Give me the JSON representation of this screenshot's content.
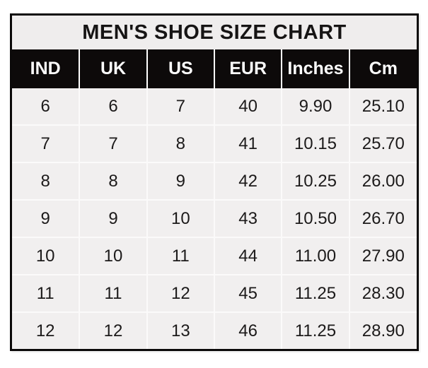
{
  "chart_data": {
    "type": "table",
    "title": "MEN'S SHOE SIZE CHART",
    "columns": [
      "IND",
      "UK",
      "US",
      "EUR",
      "Inches",
      "Cm"
    ],
    "rows": [
      [
        "6",
        "6",
        "7",
        "40",
        "9.90",
        "25.10"
      ],
      [
        "7",
        "7",
        "8",
        "41",
        "10.15",
        "25.70"
      ],
      [
        "8",
        "8",
        "9",
        "42",
        "10.25",
        "26.00"
      ],
      [
        "9",
        "9",
        "10",
        "43",
        "10.50",
        "26.70"
      ],
      [
        "10",
        "10",
        "11",
        "44",
        "11.00",
        "27.90"
      ],
      [
        "11",
        "11",
        "12",
        "45",
        "11.25",
        "28.30"
      ],
      [
        "12",
        "12",
        "13",
        "46",
        "11.25",
        "28.90"
      ]
    ]
  },
  "colors": {
    "page_background": "#ffffff",
    "outer_border": "#0b0909",
    "title_background": "#efeded",
    "header_background": "#0d0a0a",
    "header_text": "#fdfdfd",
    "row_background": "#f1efef",
    "cell_gridline": "#fbfafa",
    "body_text": "#1c1a1a"
  }
}
